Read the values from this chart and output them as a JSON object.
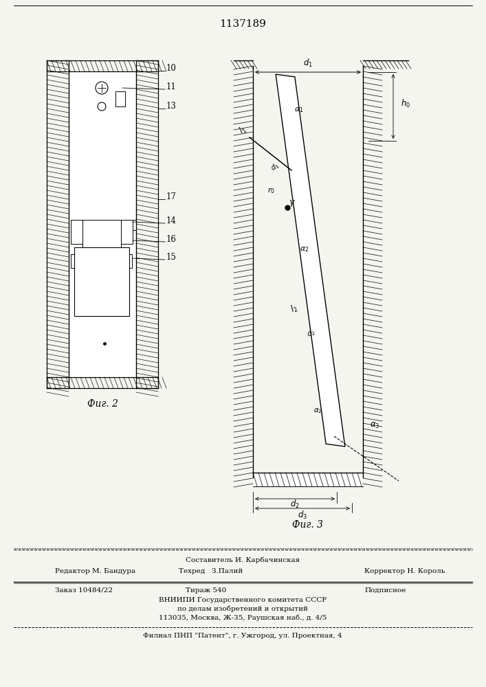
{
  "title": "1137189",
  "fig2_label": "Фиг. 2",
  "fig3_label": "Фиг. 3",
  "footer_line1": "Составитель И. Карбачинская",
  "footer_line2_left": "Редактор М. Бандура",
  "footer_line2_mid": "Техред   З.Палий",
  "footer_line2_right": "Корректор Н. Король",
  "footer_line3_left": "Заказ 10484/22",
  "footer_line3_mid": "Тираж 540",
  "footer_line3_right": "Подписное",
  "footer_line4": "ВНИИПИ Государственного комитета СССР",
  "footer_line5": "по делам изобретений и открытий",
  "footer_line6": "113035, Москва, Ж-35, Раушская наб., д. 4/5",
  "footer_line7": "Филиал ПНП \"Патент\", г. Ужгород, ул. Проектная, 4",
  "bg_color": "#f5f5f0"
}
